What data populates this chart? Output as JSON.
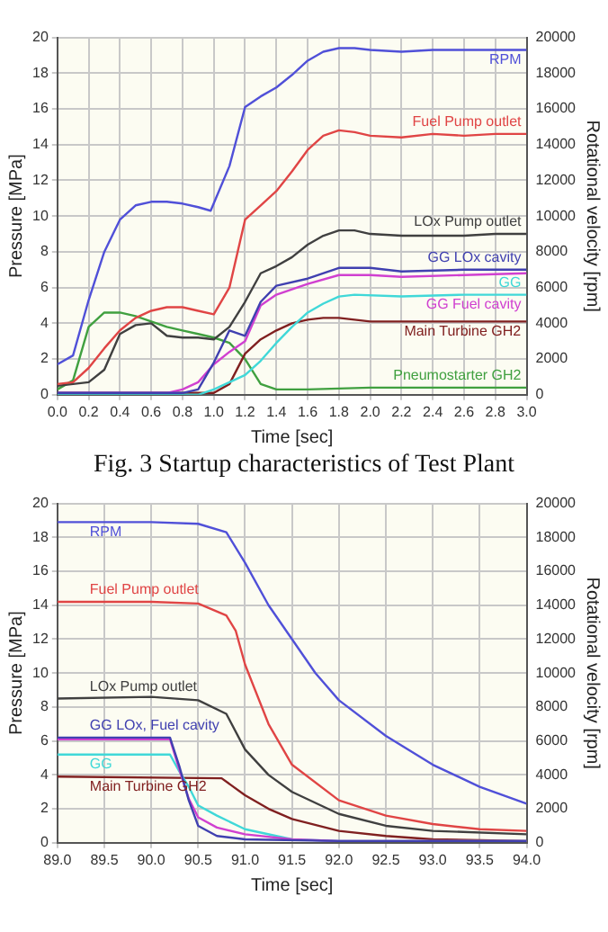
{
  "chart_data": [
    {
      "type": "line",
      "xlabel": "Time [sec]",
      "ylabel": "Pressure [MPa]",
      "y2label": "Rotational velocity [rpm]",
      "xlim": [
        0,
        3
      ],
      "xticks": [
        {
          "value": 0,
          "label": "0.0"
        },
        0.2,
        0.4,
        0.6,
        0.8,
        {
          "value": 1,
          "label": "1.0"
        },
        1.2,
        1.4,
        1.6,
        1.8,
        {
          "value": 2,
          "label": "2.0"
        },
        2.2,
        2.4,
        2.6,
        2.8,
        {
          "value": 3,
          "label": "3.0"
        }
      ],
      "ylim": [
        0,
        20
      ],
      "yticks": [
        0,
        2,
        4,
        6,
        8,
        10,
        12,
        14,
        16,
        18,
        20
      ],
      "y2lim": [
        0,
        20000
      ],
      "y2ticks": [
        0,
        2000,
        4000,
        6000,
        8000,
        10000,
        12000,
        14000,
        16000,
        18000,
        20000
      ],
      "grid": true,
      "legend": false,
      "annotations": [
        "Fig. 3 Startup characteristics of Test Plant"
      ],
      "series": [
        {
          "name": "RPM",
          "color": "#5050d8",
          "axis": "y2",
          "x": [
            0,
            0.1,
            0.2,
            0.3,
            0.4,
            0.5,
            0.6,
            0.7,
            0.8,
            0.9,
            0.98,
            1.1,
            1.2,
            1.3,
            1.4,
            1.5,
            1.6,
            1.7,
            1.8,
            1.9,
            2.0,
            2.2,
            2.4,
            2.6,
            2.8,
            3.0
          ],
          "values": [
            1700,
            2200,
            5300,
            8000,
            9800,
            10600,
            10800,
            10800,
            10700,
            10500,
            10300,
            12800,
            16100,
            16700,
            17200,
            17900,
            18700,
            19200,
            19400,
            19400,
            19300,
            19200,
            19300,
            19300,
            19300,
            19300
          ]
        },
        {
          "name": "Fuel Pump outlet",
          "color": "#e04545",
          "x": [
            0,
            0.1,
            0.2,
            0.3,
            0.4,
            0.5,
            0.6,
            0.7,
            0.8,
            0.9,
            1.0,
            1.1,
            1.2,
            1.3,
            1.4,
            1.5,
            1.6,
            1.7,
            1.8,
            1.9,
            2.0,
            2.2,
            2.4,
            2.6,
            2.8,
            3.0
          ],
          "values": [
            0.6,
            0.7,
            1.5,
            2.6,
            3.6,
            4.3,
            4.7,
            4.9,
            4.9,
            4.7,
            4.5,
            6.0,
            9.8,
            10.6,
            11.4,
            12.5,
            13.7,
            14.5,
            14.8,
            14.7,
            14.5,
            14.4,
            14.6,
            14.5,
            14.6,
            14.6
          ]
        },
        {
          "name": "LOx Pump outlet",
          "color": "#404040",
          "x": [
            0,
            0.1,
            0.2,
            0.3,
            0.4,
            0.5,
            0.6,
            0.7,
            0.8,
            0.9,
            1.0,
            1.1,
            1.2,
            1.3,
            1.4,
            1.5,
            1.6,
            1.7,
            1.8,
            1.9,
            2.0,
            2.2,
            2.4,
            2.6,
            2.8,
            3.0
          ],
          "values": [
            0.5,
            0.6,
            0.7,
            1.4,
            3.4,
            3.9,
            4.0,
            3.3,
            3.2,
            3.2,
            3.1,
            3.8,
            5.2,
            6.8,
            7.2,
            7.7,
            8.4,
            8.9,
            9.2,
            9.2,
            9.0,
            8.9,
            8.9,
            8.9,
            9.0,
            9.0
          ]
        },
        {
          "name": "GG LOx cavity",
          "color": "#4040b0",
          "x": [
            0,
            0.8,
            0.9,
            1.0,
            1.1,
            1.2,
            1.3,
            1.4,
            1.6,
            1.8,
            2.0,
            2.2,
            2.6,
            3.0
          ],
          "values": [
            0.1,
            0.1,
            0.3,
            1.8,
            3.6,
            3.3,
            5.2,
            6.1,
            6.5,
            7.1,
            7.1,
            6.9,
            7.0,
            7.0
          ]
        },
        {
          "name": "GG Fuel cavity",
          "color": "#d040d0",
          "x": [
            0,
            0.7,
            0.8,
            0.9,
            1.0,
            1.1,
            1.2,
            1.3,
            1.4,
            1.6,
            1.8,
            2.0,
            2.2,
            2.6,
            3.0
          ],
          "values": [
            0.1,
            0.1,
            0.3,
            0.7,
            1.7,
            2.4,
            3.0,
            5.0,
            5.6,
            6.2,
            6.7,
            6.7,
            6.6,
            6.7,
            6.8
          ]
        },
        {
          "name": "GG",
          "color": "#40d8d8",
          "x": [
            0,
            0.9,
            1.0,
            1.1,
            1.2,
            1.3,
            1.4,
            1.5,
            1.6,
            1.7,
            1.8,
            1.9,
            2.2,
            2.6,
            3.0
          ],
          "values": [
            0.0,
            0.0,
            0.3,
            0.7,
            1.1,
            1.9,
            2.9,
            3.8,
            4.6,
            5.1,
            5.5,
            5.6,
            5.5,
            5.6,
            5.6
          ]
        },
        {
          "name": "Main Turbine GH2",
          "color": "#802020",
          "x": [
            0,
            1.0,
            1.1,
            1.2,
            1.3,
            1.4,
            1.5,
            1.6,
            1.7,
            1.8,
            1.9,
            2.0,
            2.4,
            3.0
          ],
          "values": [
            0.1,
            0.1,
            0.6,
            2.3,
            3.1,
            3.6,
            4.0,
            4.2,
            4.3,
            4.3,
            4.2,
            4.1,
            4.1,
            4.1
          ]
        },
        {
          "name": "Pneumostarter GH2",
          "color": "#40a040",
          "x": [
            0,
            0.1,
            0.2,
            0.3,
            0.4,
            0.5,
            0.6,
            0.7,
            0.8,
            0.9,
            1.0,
            1.1,
            1.2,
            1.3,
            1.4,
            1.6,
            2.0,
            3.0
          ],
          "values": [
            0.3,
            0.8,
            3.8,
            4.6,
            4.6,
            4.4,
            4.1,
            3.8,
            3.6,
            3.4,
            3.2,
            2.9,
            2.0,
            0.6,
            0.3,
            0.3,
            0.4,
            0.4
          ]
        }
      ]
    },
    {
      "type": "line",
      "xlabel": "Time [sec]",
      "ylabel": "Pressure [MPa]",
      "y2label": "Rotational velocity [rpm]",
      "xlim": [
        89,
        94
      ],
      "xticks": [
        {
          "value": 89,
          "label": "89.0"
        },
        89.5,
        {
          "value": 90,
          "label": "90.0"
        },
        90.5,
        {
          "value": 91,
          "label": "91.0"
        },
        91.5,
        {
          "value": 92,
          "label": "92.0"
        },
        92.5,
        {
          "value": 93,
          "label": "93.0"
        },
        93.5,
        {
          "value": 94,
          "label": "94.0"
        }
      ],
      "ylim": [
        0,
        20
      ],
      "yticks": [
        0,
        2,
        4,
        6,
        8,
        10,
        12,
        14,
        16,
        18,
        20
      ],
      "y2lim": [
        0,
        20000
      ],
      "y2ticks": [
        0,
        2000,
        4000,
        6000,
        8000,
        10000,
        12000,
        14000,
        16000,
        18000,
        20000
      ],
      "grid": true,
      "legend": false,
      "series": [
        {
          "name": "RPM",
          "color": "#5050d8",
          "axis": "y2",
          "x": [
            89,
            90,
            90.5,
            90.8,
            91.0,
            91.25,
            91.5,
            91.75,
            92.0,
            92.5,
            93.0,
            93.5,
            94.0
          ],
          "values": [
            18900,
            18900,
            18800,
            18300,
            16500,
            14000,
            12000,
            10000,
            8400,
            6300,
            4600,
            3300,
            2300
          ]
        },
        {
          "name": "Fuel Pump outlet",
          "color": "#e04545",
          "x": [
            89,
            90,
            90.5,
            90.8,
            90.9,
            91.0,
            91.25,
            91.5,
            92.0,
            92.5,
            93.0,
            93.5,
            94.0
          ],
          "values": [
            14.2,
            14.2,
            14.1,
            13.4,
            12.5,
            10.5,
            7.0,
            4.6,
            2.5,
            1.6,
            1.1,
            0.8,
            0.7
          ]
        },
        {
          "name": "LOx Pump outlet",
          "color": "#404040",
          "x": [
            89,
            90,
            90.5,
            90.8,
            91.0,
            91.25,
            91.5,
            92.0,
            92.5,
            93.0,
            94.0
          ],
          "values": [
            8.5,
            8.6,
            8.4,
            7.6,
            5.5,
            4.0,
            3.0,
            1.7,
            1.0,
            0.7,
            0.5
          ]
        },
        {
          "name": "GG LOx, Fuel cavity",
          "color": "#4040b0",
          "x": [
            89,
            90.2,
            90.3,
            90.4,
            90.5,
            90.7,
            91.0,
            92.0,
            94.0
          ],
          "values": [
            6.2,
            6.2,
            4.5,
            2.5,
            1.0,
            0.4,
            0.2,
            0.1,
            0.1
          ]
        },
        {
          "color": "#d040d0",
          "x": [
            89,
            90.2,
            90.3,
            90.4,
            90.5,
            90.7,
            91.0,
            91.5,
            92.0,
            94.0
          ],
          "values": [
            6.1,
            6.1,
            4.3,
            2.6,
            1.5,
            0.9,
            0.5,
            0.2,
            0.1,
            0.1
          ]
        },
        {
          "name": "GG",
          "color": "#40d8d8",
          "x": [
            89,
            90.2,
            90.3,
            90.4,
            90.5,
            90.7,
            91.0,
            91.5,
            92.0,
            94.0
          ],
          "values": [
            5.2,
            5.2,
            4.2,
            3.3,
            2.2,
            1.6,
            0.8,
            0.2,
            0.1,
            0.1
          ]
        },
        {
          "name": "Main Turbine GH2",
          "color": "#802020",
          "x": [
            89,
            90.75,
            91.0,
            91.25,
            91.5,
            92.0,
            92.5,
            93.0,
            94.0
          ],
          "values": [
            3.9,
            3.8,
            2.8,
            2.0,
            1.4,
            0.7,
            0.4,
            0.2,
            0.1
          ]
        }
      ]
    }
  ]
}
